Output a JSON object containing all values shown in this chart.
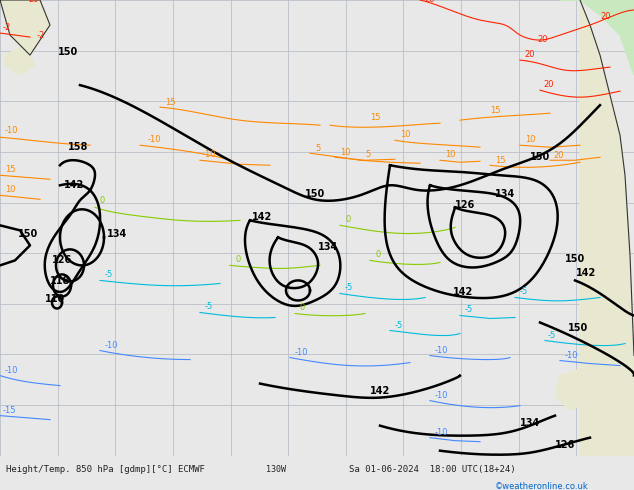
{
  "title": "Height/Temp. 850 hPa [gdmp][°C] ECMWF",
  "subtitle": "Sa 01-06-2024 18:00 UTC(18+24)",
  "credit": "©weatheronline.co.uk",
  "background_color": "#e8e8e8",
  "map_background": "#ddeeff",
  "land_color": "#f0f0e0",
  "grid_color": "#cccccc",
  "fig_width": 6.34,
  "fig_height": 4.9,
  "dpi": 100,
  "bottom_bar_color": "#d0d0d0",
  "bottom_text_color": "#333333",
  "title_fontsize": 8,
  "subtitle_fontsize": 8,
  "credit_fontsize": 7,
  "contour_color_z500": "#000000",
  "contour_color_warm": "#ff6600",
  "contour_color_cold": "#00aacc",
  "contour_color_zero": "#88cc44",
  "contour_color_red": "#ff0000",
  "contour_lw_thick": 1.8,
  "contour_lw_thin": 0.8
}
